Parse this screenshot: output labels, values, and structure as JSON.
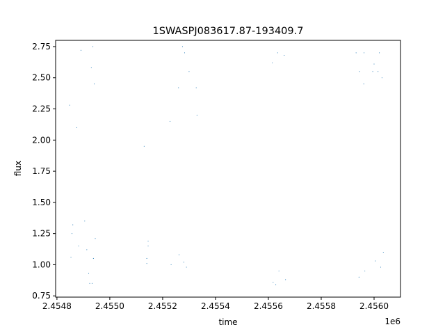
{
  "chart_data": {
    "type": "scatter",
    "title": "1SWASPJ083617.87-193409.7",
    "xlabel": "time",
    "ylabel": "flux",
    "x_offset_label": "1e6",
    "xlim": [
      2454795,
      2456100
    ],
    "ylim": [
      0.74,
      2.8
    ],
    "x_ticks": [
      {
        "value": 2454800,
        "label": "2.4548"
      },
      {
        "value": 2455000,
        "label": "2.4550"
      },
      {
        "value": 2455200,
        "label": "2.4552"
      },
      {
        "value": 2455400,
        "label": "2.4554"
      },
      {
        "value": 2455600,
        "label": "2.4556"
      },
      {
        "value": 2455800,
        "label": "2.4558"
      },
      {
        "value": 2456000,
        "label": "2.4560"
      }
    ],
    "y_ticks": [
      {
        "value": 0.75,
        "label": "0.75"
      },
      {
        "value": 1.0,
        "label": "1.00"
      },
      {
        "value": 1.25,
        "label": "1.25"
      },
      {
        "value": 1.5,
        "label": "1.50"
      },
      {
        "value": 1.75,
        "label": "1.75"
      },
      {
        "value": 2.0,
        "label": "2.00"
      },
      {
        "value": 2.25,
        "label": "2.25"
      },
      {
        "value": 2.5,
        "label": "2.50"
      },
      {
        "value": 2.75,
        "label": "2.75"
      }
    ],
    "grid": false,
    "marker_color": "#1f77b4",
    "series": [
      {
        "points": [
          [
            2454848,
            2.28
          ],
          [
            2454853,
            1.06
          ],
          [
            2454857,
            1.25
          ],
          [
            2454860,
            1.32
          ],
          [
            2454875,
            2.1
          ],
          [
            2454882,
            1.15
          ],
          [
            2454891,
            2.72
          ],
          [
            2454905,
            1.35
          ],
          [
            2454913,
            1.12
          ],
          [
            2454920,
            0.93
          ],
          [
            2454924,
            0.85
          ],
          [
            2454930,
            2.58
          ],
          [
            2454933,
            0.85
          ],
          [
            2454936,
            2.75
          ],
          [
            2454938,
            1.05
          ],
          [
            2454941,
            2.45
          ],
          [
            2454945,
            1.21
          ],
          [
            2455130,
            1.95
          ],
          [
            2455140,
            1.05
          ],
          [
            2455140,
            1.01
          ],
          [
            2455145,
            1.15
          ],
          [
            2455145,
            1.19
          ],
          [
            2455228,
            2.15
          ],
          [
            2455232,
            1.0
          ],
          [
            2455260,
            2.42
          ],
          [
            2455262,
            1.08
          ],
          [
            2455275,
            2.75
          ],
          [
            2455280,
            1.02
          ],
          [
            2455283,
            2.7
          ],
          [
            2455290,
            0.98
          ],
          [
            2455300,
            2.55
          ],
          [
            2455327,
            2.42
          ],
          [
            2455330,
            2.2
          ],
          [
            2455615,
            2.62
          ],
          [
            2455618,
            0.86
          ],
          [
            2455628,
            0.84
          ],
          [
            2455635,
            2.7
          ],
          [
            2455640,
            0.95
          ],
          [
            2455660,
            2.68
          ],
          [
            2455665,
            0.88
          ],
          [
            2455932,
            2.7
          ],
          [
            2455943,
            0.9
          ],
          [
            2455945,
            2.55
          ],
          [
            2455961,
            2.45
          ],
          [
            2455962,
            2.7
          ],
          [
            2455965,
            0.95
          ],
          [
            2455995,
            2.55
          ],
          [
            2456000,
            2.61
          ],
          [
            2456005,
            1.03
          ],
          [
            2456015,
            2.55
          ],
          [
            2456020,
            2.7
          ],
          [
            2456025,
            0.98
          ],
          [
            2456030,
            2.5
          ],
          [
            2456035,
            1.1
          ]
        ]
      }
    ]
  }
}
